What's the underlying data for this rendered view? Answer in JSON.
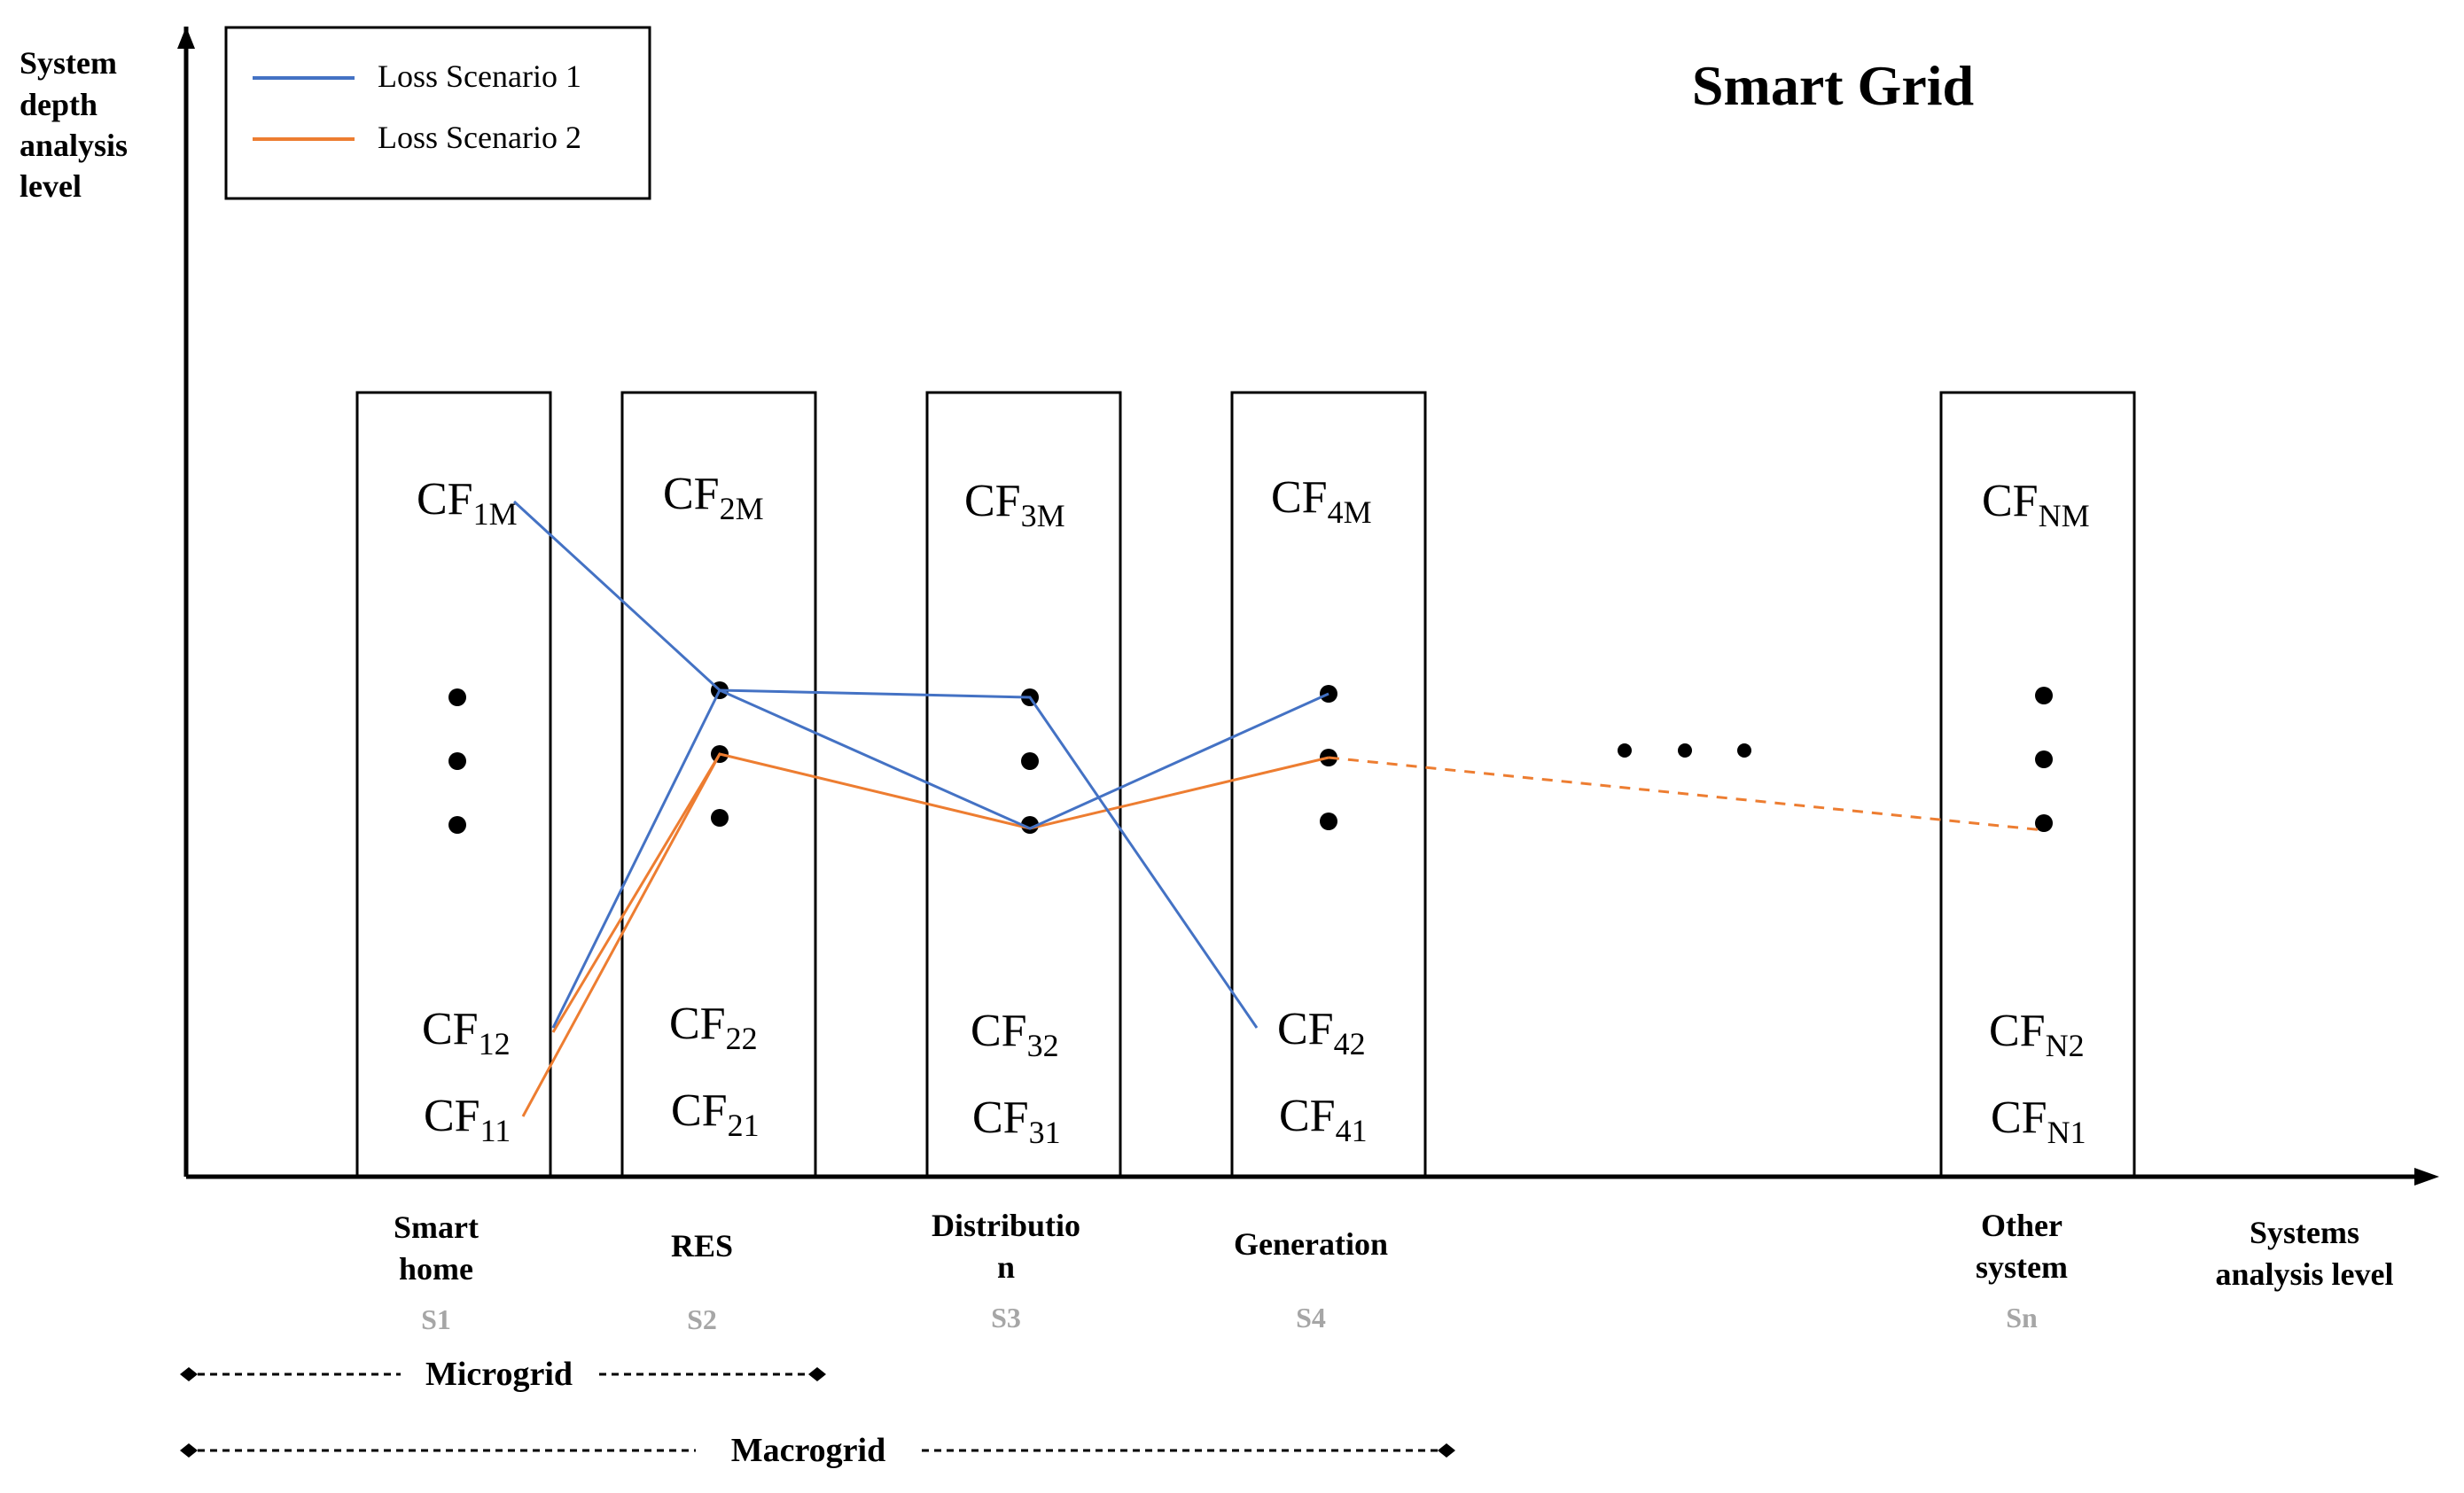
{
  "title": "Smart Grid",
  "y_axis_label": [
    "System",
    "depth",
    "analysis",
    "level"
  ],
  "x_axis_label": [
    "Systems",
    "analysis level"
  ],
  "legend": [
    {
      "label": "Loss Scenario 1",
      "color": "#4472C4"
    },
    {
      "label": "Loss Scenario 2",
      "color": "#ED7D31"
    }
  ],
  "systems": [
    {
      "id": "S1",
      "name": [
        "Smart",
        "home"
      ],
      "top": {
        "base": "CF",
        "sub": "1M"
      },
      "bottom": [
        {
          "base": "CF",
          "sub": "12"
        },
        {
          "base": "CF",
          "sub": "11"
        }
      ]
    },
    {
      "id": "S2",
      "name": [
        "RES"
      ],
      "top": {
        "base": "CF",
        "sub": "2M"
      },
      "bottom": [
        {
          "base": "CF",
          "sub": "22"
        },
        {
          "base": "CF",
          "sub": "21"
        }
      ]
    },
    {
      "id": "S3",
      "name": [
        "Distributio",
        "n"
      ],
      "top": {
        "base": "CF",
        "sub": "3M"
      },
      "bottom": [
        {
          "base": "CF",
          "sub": "32"
        },
        {
          "base": "CF",
          "sub": "31"
        }
      ]
    },
    {
      "id": "S4",
      "name": [
        "Generation"
      ],
      "top": {
        "base": "CF",
        "sub": "4M"
      },
      "bottom": [
        {
          "base": "CF",
          "sub": "42"
        },
        {
          "base": "CF",
          "sub": "41"
        }
      ]
    },
    {
      "id": "Sn",
      "name": [
        "Other",
        "system"
      ],
      "top": {
        "base": "CF",
        "sub": "NM"
      },
      "bottom": [
        {
          "base": "CF",
          "sub": "N2"
        },
        {
          "base": "CF",
          "sub": "N1"
        }
      ]
    }
  ],
  "groups": [
    {
      "label": "Microgrid"
    },
    {
      "label": "Macrogrid"
    }
  ]
}
